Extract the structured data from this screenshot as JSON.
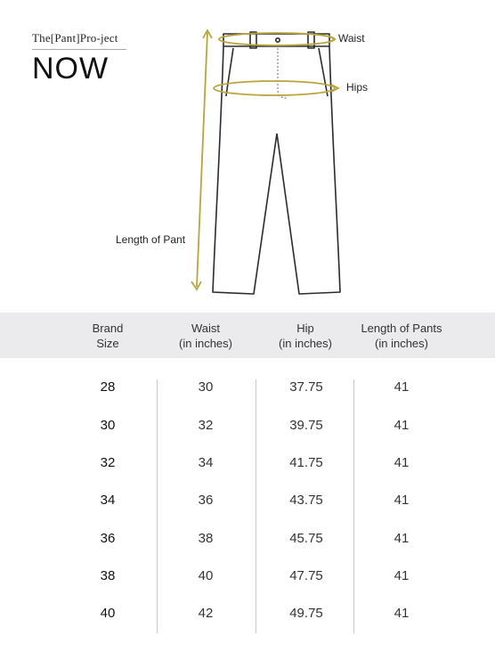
{
  "brand": {
    "line1": "The[Pant]Pro-ject",
    "line2": "NOW"
  },
  "diagram": {
    "waist_label": "Waist",
    "hips_label": "Hips",
    "length_label": "Length of Pant",
    "accent_color": "#b9a43e"
  },
  "table": {
    "headers": [
      {
        "line1": "Brand",
        "line2": "Size"
      },
      {
        "line1": "Waist",
        "line2": "(in inches)"
      },
      {
        "line1": "Hip",
        "line2": "(in inches)"
      },
      {
        "line1": "Length of Pants",
        "line2": "(in inches)"
      }
    ],
    "rows": [
      [
        "28",
        "30",
        "37.75",
        "41"
      ],
      [
        "30",
        "32",
        "39.75",
        "41"
      ],
      [
        "32",
        "34",
        "41.75",
        "41"
      ],
      [
        "34",
        "36",
        "43.75",
        "41"
      ],
      [
        "36",
        "38",
        "45.75",
        "41"
      ],
      [
        "38",
        "40",
        "47.75",
        "41"
      ],
      [
        "40",
        "42",
        "49.75",
        "41"
      ]
    ]
  }
}
